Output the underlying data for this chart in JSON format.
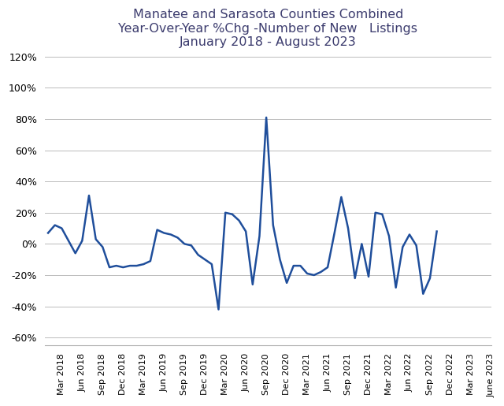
{
  "title": "Manatee and Sarasota Counties Combined\nYear-Over-Year %Chg -Number of New   Listings\nJanuary 2018 - August 2023",
  "title_color": "#3C3C6E",
  "line_color": "#1F4E9B",
  "background_color": "#FFFFFF",
  "ylim": [
    -0.65,
    0.135
  ],
  "yticks": [
    -0.6,
    -0.4,
    -0.2,
    0.0,
    0.2,
    0.4,
    0.6,
    0.8,
    1.0,
    1.2
  ],
  "ytick_labels": [
    "-60%",
    "-40%",
    "-20%",
    "0%",
    "20%",
    "40%",
    "60%",
    "80%",
    "100%",
    "120%"
  ],
  "xtick_labels": [
    "Mar 2018",
    "Jun 2018",
    "Sep 2018",
    "Dec 2018",
    "Mar 2019",
    "Jun 2019",
    "Sep 2019",
    "Dec 2019",
    "Mar 2020",
    "Jun 2020",
    "Sep 2020",
    "Dec 2020",
    "Mar 2021",
    "Jun 2021",
    "Sep 2021",
    "Dec 2021",
    "Mar 2022",
    "Jun 2022",
    "Sep 2022",
    "Dec 2022",
    "Mar 2023",
    "June 2023"
  ],
  "values": [
    0.07,
    0.12,
    0.1,
    0.02,
    -0.06,
    0.02,
    0.31,
    0.03,
    -0.02,
    -0.15,
    -0.14,
    -0.15,
    -0.14,
    -0.14,
    -0.13,
    -0.11,
    0.09,
    0.07,
    0.06,
    0.04,
    0.0,
    -0.01,
    -0.07,
    -0.1,
    -0.13,
    -0.42,
    0.2,
    0.19,
    0.15,
    0.08,
    -0.26,
    0.05,
    0.81,
    0.12,
    -0.1,
    -0.25,
    -0.14,
    -0.14,
    -0.19,
    -0.2,
    -0.18,
    -0.15,
    0.07,
    0.3,
    0.1,
    -0.22,
    0.0,
    -0.21,
    0.2,
    0.19,
    0.05,
    -0.28,
    -0.02,
    0.06,
    -0.01,
    -0.32,
    -0.22,
    0.08
  ],
  "start_year": 2018,
  "start_month": 1
}
